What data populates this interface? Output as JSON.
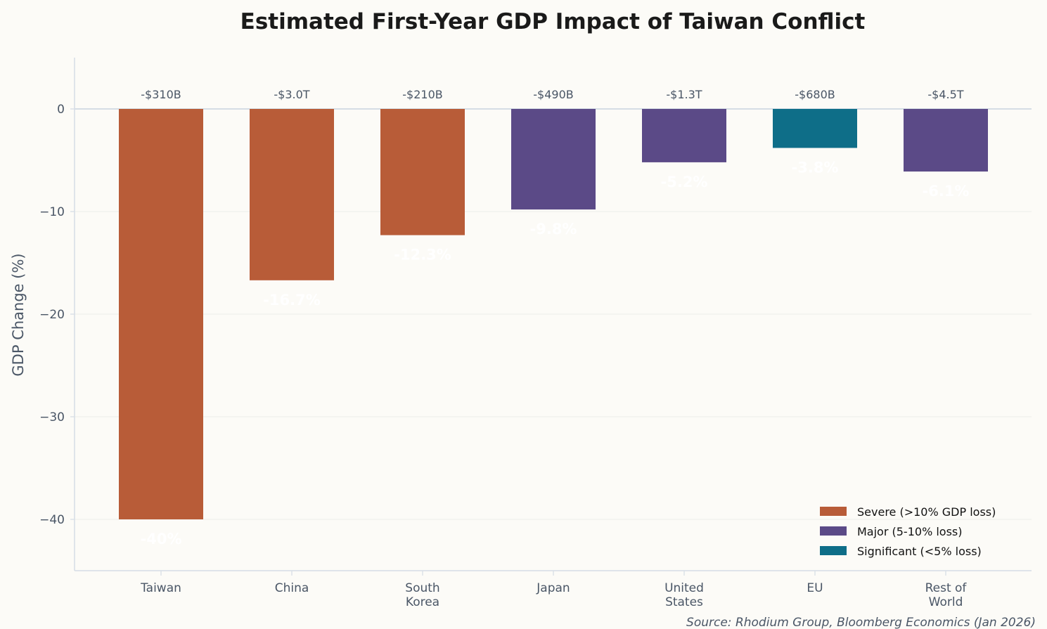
{
  "chart_data": {
    "type": "bar",
    "title": "Estimated First-Year GDP Impact of Taiwan Conflict",
    "ylabel": "GDP Change (%)",
    "xlabel": "",
    "ylim": [
      -45,
      5
    ],
    "yticks": [
      0,
      -10,
      -20,
      -30,
      -40
    ],
    "ytick_labels": [
      "0",
      "−10",
      "−20",
      "−30",
      "−40"
    ],
    "grid": "horizontal",
    "categories": [
      [
        "Taiwan"
      ],
      [
        "China"
      ],
      [
        "South",
        "Korea"
      ],
      [
        "Japan"
      ],
      [
        "United",
        "States"
      ],
      [
        "EU"
      ],
      [
        "Rest of",
        "World"
      ]
    ],
    "values": [
      -40,
      -16.7,
      -12.3,
      -9.8,
      -5.2,
      -3.8,
      -6.1
    ],
    "value_labels": [
      "-40%",
      "-16.7%",
      "-12.3%",
      "-9.8%",
      "-5.2%",
      "-3.8%",
      "-6.1%"
    ],
    "dollar_labels": [
      "-$310B",
      "-$3.0T",
      "-$210B",
      "-$490B",
      "-$1.3T",
      "-$680B",
      "-$4.5T"
    ],
    "tiers": [
      "severe",
      "severe",
      "severe",
      "major",
      "major",
      "significant",
      "major"
    ],
    "legend_placement": "bottom-right",
    "legend": [
      {
        "key": "severe",
        "label": "Severe (>10% GDP loss)",
        "color": "#b85c38"
      },
      {
        "key": "major",
        "label": "Major (5-10% loss)",
        "color": "#5b4a87"
      },
      {
        "key": "significant",
        "label": "Significant (<5% loss)",
        "color": "#0e6e88"
      }
    ],
    "source": "Source: Rhodium Group, Bloomberg Economics (Jan 2026)"
  }
}
